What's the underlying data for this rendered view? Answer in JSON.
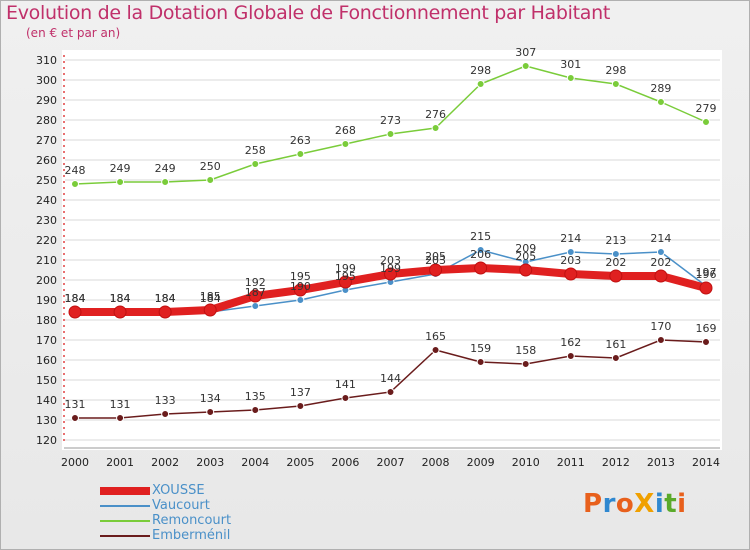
{
  "title": "Evolution de la Dotation Globale de Fonctionnement par Habitant",
  "subtitle": "(en € et par an)",
  "logo": {
    "text": "ProXiti",
    "colors": [
      "#e8601c",
      "#2f88d0",
      "#e8601c",
      "#f0a000",
      "#2f88d0",
      "#5aaa2a",
      "#e8601c"
    ]
  },
  "chart_data": {
    "type": "line",
    "title": "Evolution de la Dotation Globale de Fonctionnement par Habitant",
    "ylabel": "(en € et par an)",
    "x": [
      "2000",
      "2001",
      "2002",
      "2003",
      "2004",
      "2005",
      "2006",
      "2007",
      "2008",
      "2009",
      "2010",
      "2011",
      "2012",
      "2013",
      "2014"
    ],
    "ylim": [
      120,
      310
    ],
    "yticks": [
      120,
      130,
      140,
      150,
      160,
      170,
      180,
      190,
      200,
      210,
      220,
      230,
      240,
      250,
      260,
      270,
      280,
      290,
      300,
      310
    ],
    "series": [
      {
        "name": "XOUSSE",
        "color": "#e02020",
        "values": [
          184,
          184,
          184,
          185,
          192,
          195,
          199,
          203,
          205,
          206,
          205,
          203,
          202,
          202,
          196
        ],
        "labels": [
          "184",
          "184",
          "184",
          "185",
          "192",
          "195",
          "199",
          "203",
          "205",
          "206",
          "205",
          "203",
          "202",
          "202",
          "196"
        ]
      },
      {
        "name": "Vaucourt",
        "color": "#4a90c8",
        "values": [
          184,
          184,
          184,
          184,
          187,
          190,
          195,
          199,
          203,
          215,
          209,
          214,
          213,
          214,
          197
        ],
        "labels": [
          "184",
          "184",
          "184",
          "184",
          "187",
          "190",
          "195",
          "199",
          "203",
          "215",
          "209",
          "214",
          "213",
          "214",
          "197"
        ]
      },
      {
        "name": "Remoncourt",
        "color": "#7acc3a",
        "values": [
          248,
          249,
          249,
          250,
          258,
          263,
          268,
          273,
          276,
          298,
          307,
          301,
          298,
          289,
          279
        ],
        "labels": [
          "248",
          "249",
          "249",
          "250",
          "258",
          "263",
          "268",
          "273",
          "276",
          "298",
          "307",
          "301",
          "298",
          "289",
          "279"
        ]
      },
      {
        "name": "Emberménil",
        "color": "#6a1c1c",
        "values": [
          131,
          131,
          133,
          134,
          135,
          137,
          141,
          144,
          165,
          159,
          158,
          162,
          161,
          170,
          169
        ],
        "labels": [
          "131",
          "131",
          "133",
          "134",
          "135",
          "137",
          "141",
          "144",
          "165",
          "159",
          "158",
          "162",
          "161",
          "170",
          "169"
        ]
      }
    ]
  }
}
